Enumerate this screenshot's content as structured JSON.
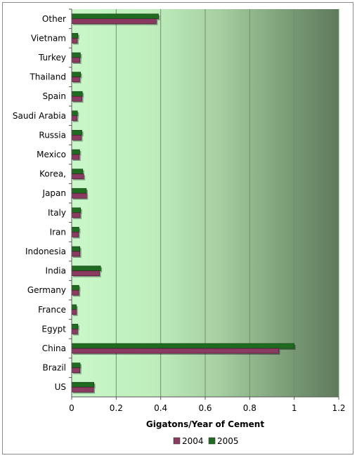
{
  "chart_data": {
    "type": "bar",
    "orientation": "horizontal",
    "title": "",
    "xlabel": "Gigatons/Year of Cement",
    "ylabel": "",
    "xlim": [
      0,
      1.2
    ],
    "x_ticks": [
      "0",
      "0.2",
      "0.4",
      "0.6",
      "0.8",
      "1",
      "1.2"
    ],
    "grid": true,
    "legend_position": "bottom",
    "categories": [
      "Other",
      "Vietnam",
      "Turkey",
      "Thailand",
      "Spain",
      "Saudi Arabia",
      "Russia",
      "Mexico",
      "Korea,",
      "Japan",
      "Italy",
      "Iran",
      "Indonesia",
      "India",
      "Germany",
      "France",
      "Egypt",
      "China",
      "Brazil",
      "US"
    ],
    "series": [
      {
        "name": "2004",
        "color": "#8b3a62",
        "values": [
          0.38,
          0.025,
          0.037,
          0.036,
          0.046,
          0.024,
          0.043,
          0.034,
          0.054,
          0.067,
          0.038,
          0.031,
          0.037,
          0.125,
          0.032,
          0.021,
          0.026,
          0.93,
          0.037,
          0.098
        ]
      },
      {
        "name": "2005",
        "color": "#1f6b1f",
        "values": [
          0.39,
          0.028,
          0.039,
          0.04,
          0.048,
          0.026,
          0.046,
          0.036,
          0.05,
          0.066,
          0.04,
          0.033,
          0.037,
          0.13,
          0.033,
          0.021,
          0.028,
          1.0,
          0.038,
          0.1
        ]
      }
    ]
  }
}
